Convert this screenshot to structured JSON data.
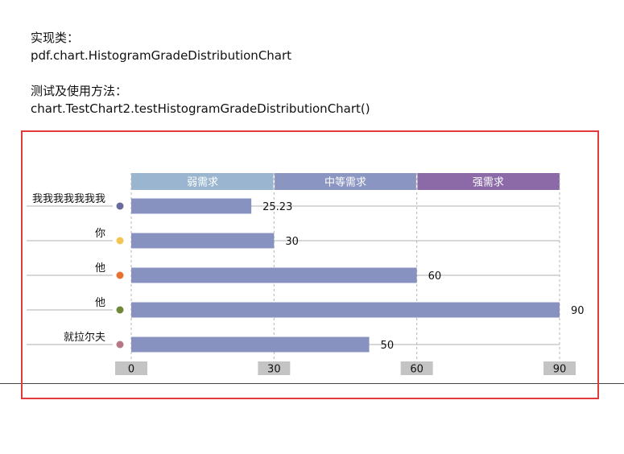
{
  "intro": {
    "impl_label": "实现类：",
    "impl_class": "pdf.chart.HistogramGradeDistributionChart",
    "usage_label": "测试及使用方法：",
    "usage_method": "chart.TestChart2.testHistogramGradeDistributionChart()"
  },
  "chart_data": {
    "type": "bar",
    "orientation": "horizontal",
    "categories": [
      "我我我我我我我",
      "你",
      "他",
      "他",
      "就拉尔夫"
    ],
    "values": [
      25.23,
      30,
      60,
      90,
      50
    ],
    "value_labels": [
      "25.23",
      "30",
      "60",
      "90",
      "50"
    ],
    "dot_colors": [
      "#6b6a9e",
      "#f3c553",
      "#e8712f",
      "#6e8a38",
      "#b77784"
    ],
    "bar_color": "#8892c0",
    "xlim": [
      0,
      90
    ],
    "ticks": [
      "0",
      "30",
      "60",
      "90"
    ],
    "bands": [
      {
        "label": "弱需求",
        "from": 0,
        "to": 30,
        "color": "#99b5cf"
      },
      {
        "label": "中等需求",
        "from": 30,
        "to": 60,
        "color": "#8b95c2"
      },
      {
        "label": "强需求",
        "from": 60,
        "to": 90,
        "color": "#8c6aa7"
      }
    ],
    "grid": true
  }
}
